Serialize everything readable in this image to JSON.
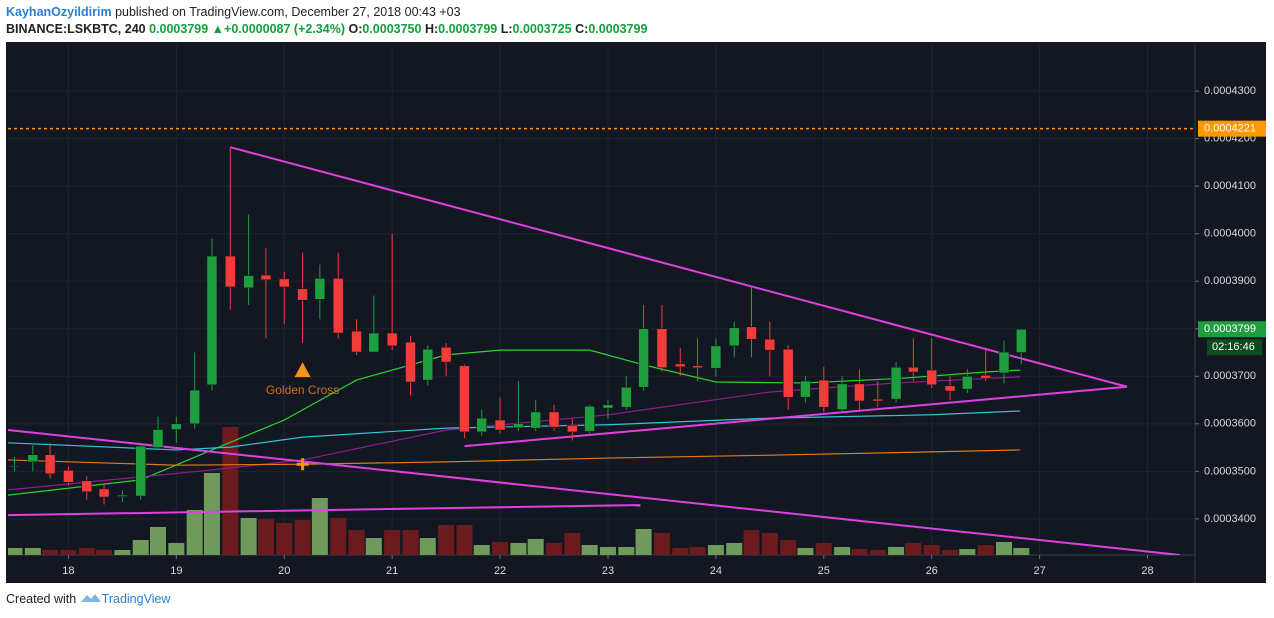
{
  "header": {
    "author": "KayhanOzyildirim",
    "published": "published on TradingView.com, December 27, 2018 00:43 +03",
    "symbol": "BINANCE:LSKBTC, 240",
    "price": "0.0003799",
    "arrow": "▲",
    "change": "+0.0000087 (+2.34%)",
    "o_label": "O:",
    "o_value": "0.0003750",
    "h_label": "H:",
    "h_value": "0.0003799",
    "l_label": "L:",
    "l_value": "0.0003725",
    "c_label": "C:",
    "c_value": "0.0003799"
  },
  "footer": {
    "created": "Created with",
    "brand": "TradingView"
  },
  "chart_data": {
    "type": "candlestick",
    "up_color": "#1e9e3f",
    "down_color": "#f23c3c",
    "volume_up_color": "#6f9a5c",
    "volume_down_color": "#6b1a1d",
    "grid": true,
    "xlim": [
      17.44,
      28.44
    ],
    "xticks": [
      18,
      19,
      20,
      21,
      22,
      23,
      24,
      25,
      26,
      27,
      28
    ],
    "ylim": [
      0.0003324,
      0.0004397
    ],
    "yticks": [
      {
        "value": 0.00034,
        "label": "0.0003400"
      },
      {
        "value": 0.00035,
        "label": "0.0003500"
      },
      {
        "value": 0.00036,
        "label": "0.0003600"
      },
      {
        "value": 0.00037,
        "label": "0.0003700"
      },
      {
        "value": 0.00038,
        "label": "0.0003800"
      },
      {
        "value": 0.00039,
        "label": "0.0003900"
      },
      {
        "value": 0.0004,
        "label": "0.0004000"
      },
      {
        "value": 0.00041,
        "label": "0.0004100"
      },
      {
        "value": 0.00042,
        "label": "0.0004200"
      },
      {
        "value": 0.00043,
        "label": "0.0004300"
      }
    ],
    "x": [
      17.5,
      17.67,
      17.83,
      18,
      18.17,
      18.33,
      18.5,
      18.67,
      18.83,
      19,
      19.17,
      19.33,
      19.5,
      19.67,
      19.83,
      20,
      20.17,
      20.33,
      20.5,
      20.67,
      20.83,
      21,
      21.17,
      21.33,
      21.5,
      21.67,
      21.83,
      22,
      22.17,
      22.33,
      22.5,
      22.67,
      22.83,
      23,
      23.17,
      23.33,
      23.5,
      23.67,
      23.83,
      24,
      24.17,
      24.33,
      24.5,
      24.67,
      24.83,
      25,
      25.17,
      25.33,
      25.5,
      25.67,
      25.83,
      26,
      26.17,
      26.33,
      26.5,
      26.67,
      26.83
    ],
    "open": [
      0.000351,
      0.000352,
      0.0003535,
      0.0003502,
      0.000348,
      0.0003463,
      0.0003447,
      0.0003448,
      0.000355,
      0.0003588,
      0.00036,
      0.0003682,
      0.0003953,
      0.0003886,
      0.0003913,
      0.0003905,
      0.0003884,
      0.0003862,
      0.0003906,
      0.0003795,
      0.0003751,
      0.0003791,
      0.0003772,
      0.0003692,
      0.0003761,
      0.0003722,
      0.0003583,
      0.0003608,
      0.0003592,
      0.0003591,
      0.0003625,
      0.0003597,
      0.0003584,
      0.0003633,
      0.0003635,
      0.0003677,
      0.00038,
      0.0003726,
      0.0003722,
      0.0003717,
      0.0003764,
      0.0003804,
      0.0003778,
      0.0003757,
      0.0003656,
      0.0003692,
      0.000363,
      0.0003684,
      0.0003652,
      0.0003652,
      0.0003719,
      0.0003713,
      0.000368,
      0.0003673,
      0.0003702,
      0.0003707,
      0.000375
    ],
    "high": [
      0.000353,
      0.0003555,
      0.000356,
      0.000351,
      0.000349,
      0.0003475,
      0.000346,
      0.000356,
      0.0003615,
      0.0003615,
      0.000375,
      0.000399,
      0.000418,
      0.000404,
      0.000397,
      0.000392,
      0.000396,
      0.0003935,
      0.000396,
      0.000382,
      0.000387,
      0.0004,
      0.0003785,
      0.0003765,
      0.000377,
      0.0003725,
      0.000363,
      0.0003655,
      0.000369,
      0.000365,
      0.000364,
      0.000361,
      0.000364,
      0.000365,
      0.00037,
      0.000385,
      0.000385,
      0.000376,
      0.000378,
      0.000378,
      0.0003815,
      0.000389,
      0.0003815,
      0.0003765,
      0.00037,
      0.000372,
      0.00037,
      0.0003715,
      0.000369,
      0.000373,
      0.000378,
      0.000378,
      0.00037,
      0.0003715,
      0.0003755,
      0.0003775,
      0.0003799
    ],
    "low": [
      0.00035,
      0.00035,
      0.0003485,
      0.000347,
      0.000344,
      0.000343,
      0.0003435,
      0.000344,
      0.0003545,
      0.000356,
      0.000359,
      0.000367,
      0.000384,
      0.000385,
      0.000378,
      0.000381,
      0.000377,
      0.000382,
      0.000378,
      0.0003745,
      0.000375,
      0.0003755,
      0.000366,
      0.000368,
      0.00037,
      0.000357,
      0.0003575,
      0.000358,
      0.0003585,
      0.0003585,
      0.0003585,
      0.0003565,
      0.000358,
      0.000361,
      0.000363,
      0.000367,
      0.000371,
      0.00037,
      0.000369,
      0.00037,
      0.000374,
      0.000374,
      0.00037,
      0.000363,
      0.0003645,
      0.0003625,
      0.0003625,
      0.000363,
      0.0003635,
      0.0003645,
      0.000369,
      0.0003675,
      0.000365,
      0.0003665,
      0.000369,
      0.0003685,
      0.0003725
    ],
    "close": [
      0.0003512,
      0.0003535,
      0.0003495,
      0.0003477,
      0.0003457,
      0.0003446,
      0.000345,
      0.0003553,
      0.0003588,
      0.00036,
      0.0003671,
      0.0003953,
      0.0003888,
      0.0003912,
      0.0003903,
      0.0003888,
      0.000386,
      0.0003906,
      0.0003791,
      0.0003751,
      0.0003791,
      0.0003764,
      0.0003688,
      0.0003757,
      0.000373,
      0.0003583,
      0.0003612,
      0.0003587,
      0.00036,
      0.0003625,
      0.0003593,
      0.0003583,
      0.0003637,
      0.000364,
      0.0003677,
      0.00038,
      0.0003718,
      0.000372,
      0.0003718,
      0.0003764,
      0.0003802,
      0.0003778,
      0.0003755,
      0.0003656,
      0.000369,
      0.0003635,
      0.0003684,
      0.0003648,
      0.0003648,
      0.0003719,
      0.0003709,
      0.0003682,
      0.0003669,
      0.00037,
      0.0003696,
      0.0003751,
      0.0003799
    ],
    "volume_lim": [
      0,
      140
    ],
    "volume": [
      7,
      7,
      5,
      5,
      7,
      5,
      5,
      15,
      28,
      12,
      45,
      82,
      128,
      37,
      36,
      32,
      35,
      57,
      37,
      25,
      17,
      25,
      25,
      17,
      30,
      30,
      10,
      13,
      12,
      16,
      12,
      22,
      10,
      8,
      8,
      26,
      22,
      7,
      8,
      10,
      12,
      25,
      22,
      15,
      7,
      12,
      8,
      6,
      5,
      8,
      12,
      10,
      5,
      6,
      10,
      13,
      7
    ],
    "overlays": [
      {
        "color": "#2fd12f",
        "x": [
          17.44,
          18.67,
          19.33,
          20,
          20.67,
          21.5,
          22,
          22.83,
          23.33,
          24,
          24.83,
          25.67,
          26.5,
          26.82
        ],
        "values": [
          0.000345,
          0.0003482,
          0.0003545,
          0.0003608,
          0.0003692,
          0.0003745,
          0.0003755,
          0.0003755,
          0.0003724,
          0.0003688,
          0.0003686,
          0.0003695,
          0.0003709,
          0.0003713
        ]
      },
      {
        "color": "#8e1e8e",
        "x": [
          17.44,
          19.33,
          20.17,
          21.5,
          23,
          24.5,
          25.67,
          26.82
        ],
        "values": [
          0.0003461,
          0.0003503,
          0.0003524,
          0.0003587,
          0.0003619,
          0.0003667,
          0.0003686,
          0.0003699
        ]
      },
      {
        "color": "#2ec6d6",
        "x": [
          17.44,
          19,
          19.5,
          20.17,
          21.5,
          23,
          24.5,
          26,
          26.82
        ],
        "values": [
          0.000356,
          0.0003545,
          0.0003551,
          0.0003572,
          0.0003591,
          0.0003598,
          0.0003612,
          0.0003619,
          0.0003627
        ]
      },
      {
        "color": "#e07b18",
        "x": [
          17.44,
          19,
          20.17,
          21.5,
          23,
          24.5,
          26,
          26.82
        ],
        "values": [
          0.0003524,
          0.0003513,
          0.0003515,
          0.000352,
          0.0003528,
          0.0003534,
          0.0003541,
          0.0003545
        ]
      },
      {
        "color": "#e040e0",
        "x": [
          19.5,
          27.81
        ],
        "values": [
          0.0004182,
          0.0003678
        ]
      },
      {
        "color": "#e040e0",
        "x": [
          21.67,
          27.81
        ],
        "values": [
          0.0003553,
          0.0003678
        ]
      },
      {
        "color": "#e040e0",
        "x": [
          17.44,
          28.3
        ],
        "values": [
          0.0003587,
          0.0003324
        ]
      },
      {
        "color": "#e040e0",
        "x": [
          17.44,
          23.3
        ],
        "values": [
          0.0003408,
          0.0003429
        ]
      }
    ],
    "price_line": {
      "value": 0.0004221,
      "label": "0.0004221",
      "color": "#ff9800"
    },
    "last_price": {
      "value": 0.0003799,
      "label": "0.0003799",
      "countdown": "02:16:46"
    },
    "markers": [
      {
        "shape": "triangle",
        "x": 20.17,
        "value": 0.0003713,
        "color": "#f7931a"
      },
      {
        "shape": "cross",
        "x": 20.17,
        "value": 0.0003515,
        "color": "#f7931a"
      }
    ],
    "annotation": {
      "text": "Golden Cross",
      "x": 20.17,
      "value": 0.0003669,
      "color": "#c8731c"
    }
  }
}
